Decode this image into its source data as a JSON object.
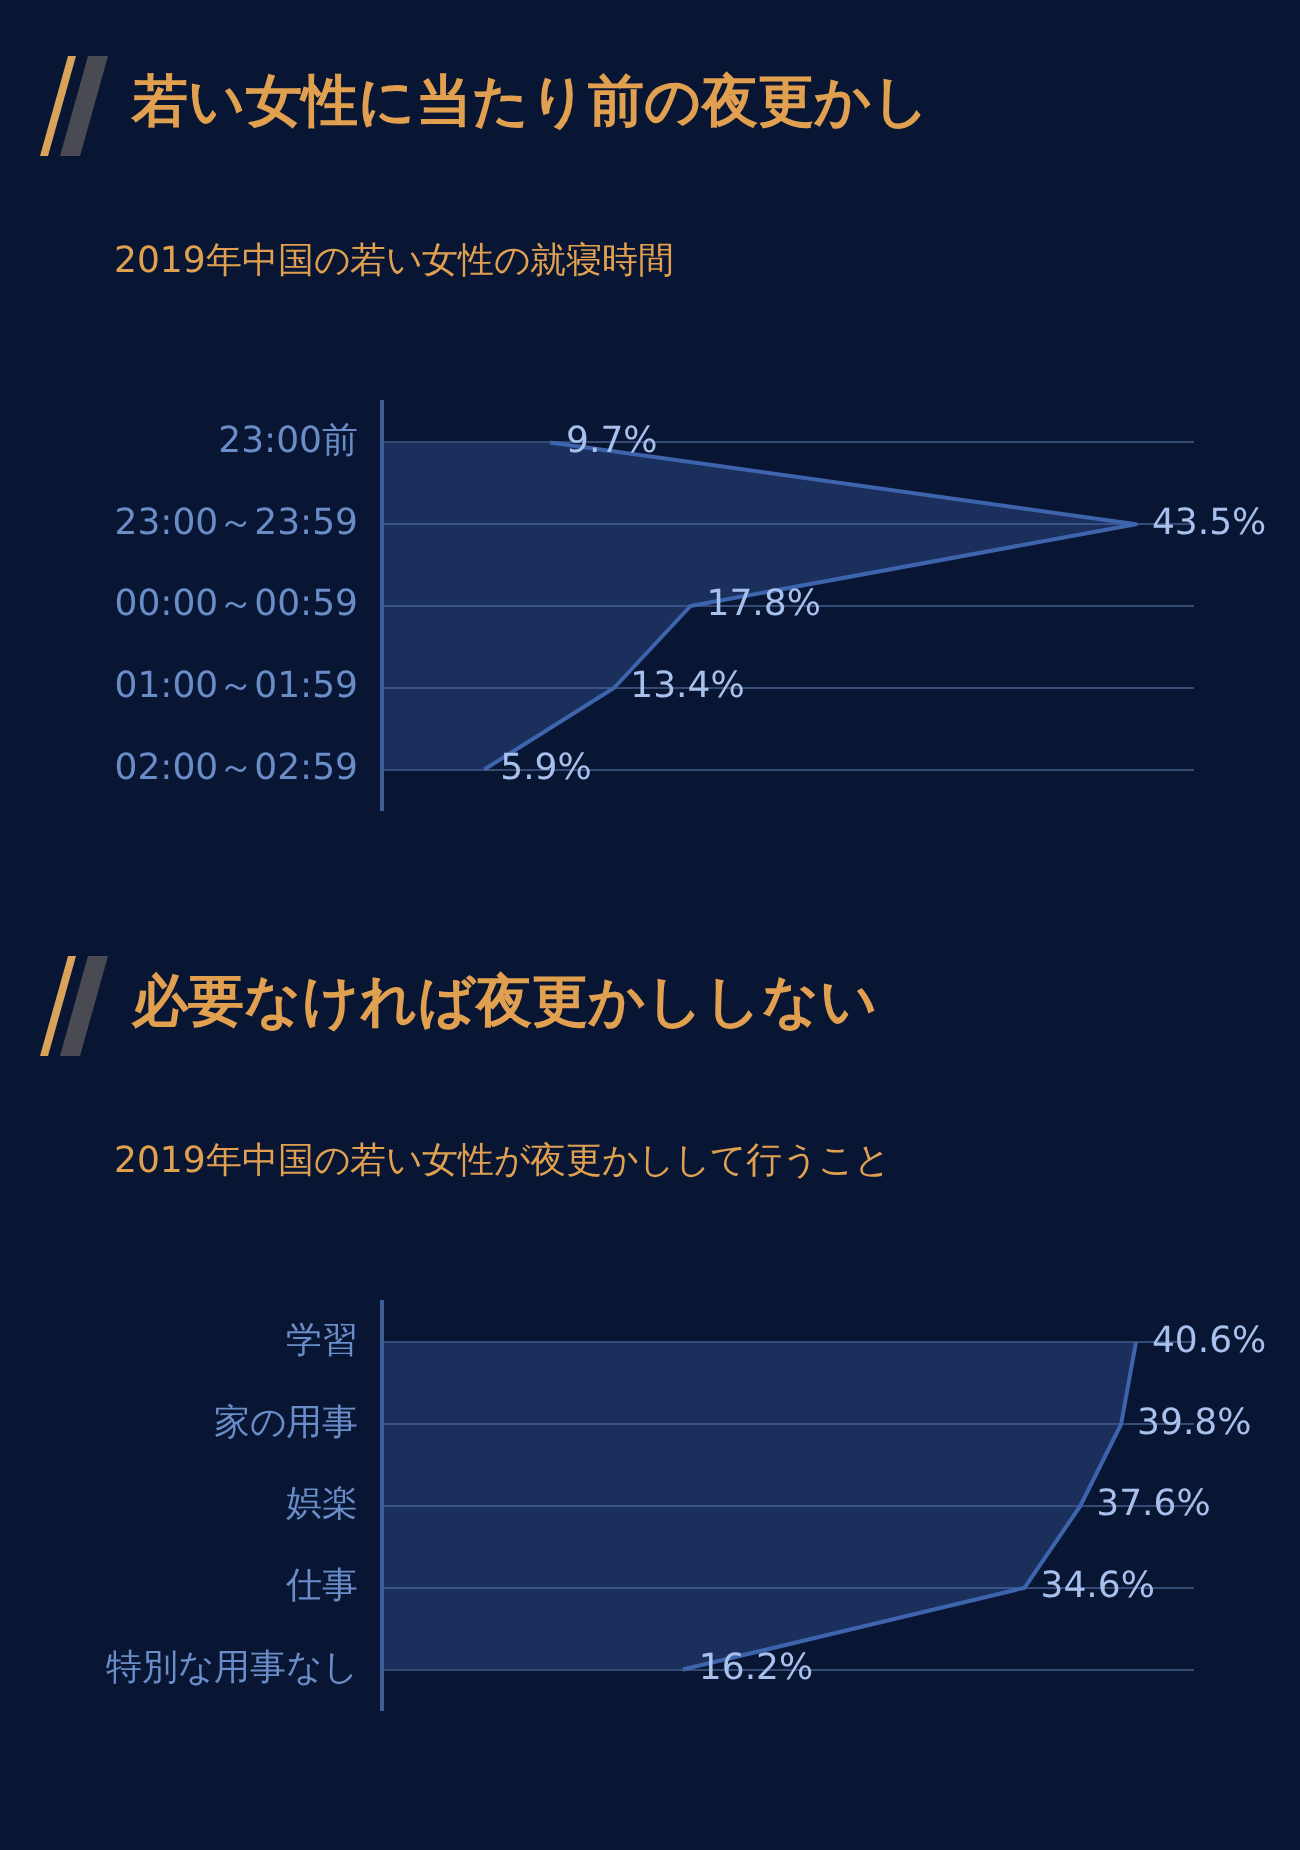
{
  "chart_data": [
    {
      "type": "area",
      "orientation": "horizontal",
      "title": "若い女性に当たり前の夜更かし",
      "subtitle": "2019年中国の若い女性の就寝時間",
      "categories": [
        "23:00前",
        "23:00～23:59",
        "00:00～00:59",
        "01:00～01:59",
        "02:00～02:59"
      ],
      "values": [
        9.7,
        43.5,
        17.8,
        13.4,
        5.9
      ],
      "value_labels": [
        "9.7%",
        "43.5%",
        "17.8%",
        "13.4%",
        "5.9%"
      ],
      "color": "#3e64ad",
      "grid": "y",
      "marker": "none"
    },
    {
      "type": "area",
      "orientation": "horizontal",
      "title": "必要なければ夜更かししない",
      "subtitle": "2019年中国の若い女性が夜更かしして行うこと",
      "categories": [
        "学習",
        "家の用事",
        "娯楽",
        "仕事",
        "特別な用事なし"
      ],
      "values": [
        40.6,
        39.8,
        37.6,
        34.6,
        16.2
      ],
      "value_labels": [
        "40.6%",
        "39.8%",
        "37.6%",
        "34.6%",
        "16.2%"
      ],
      "color": "#3e64ad",
      "grid": "y",
      "marker": "none"
    }
  ]
}
